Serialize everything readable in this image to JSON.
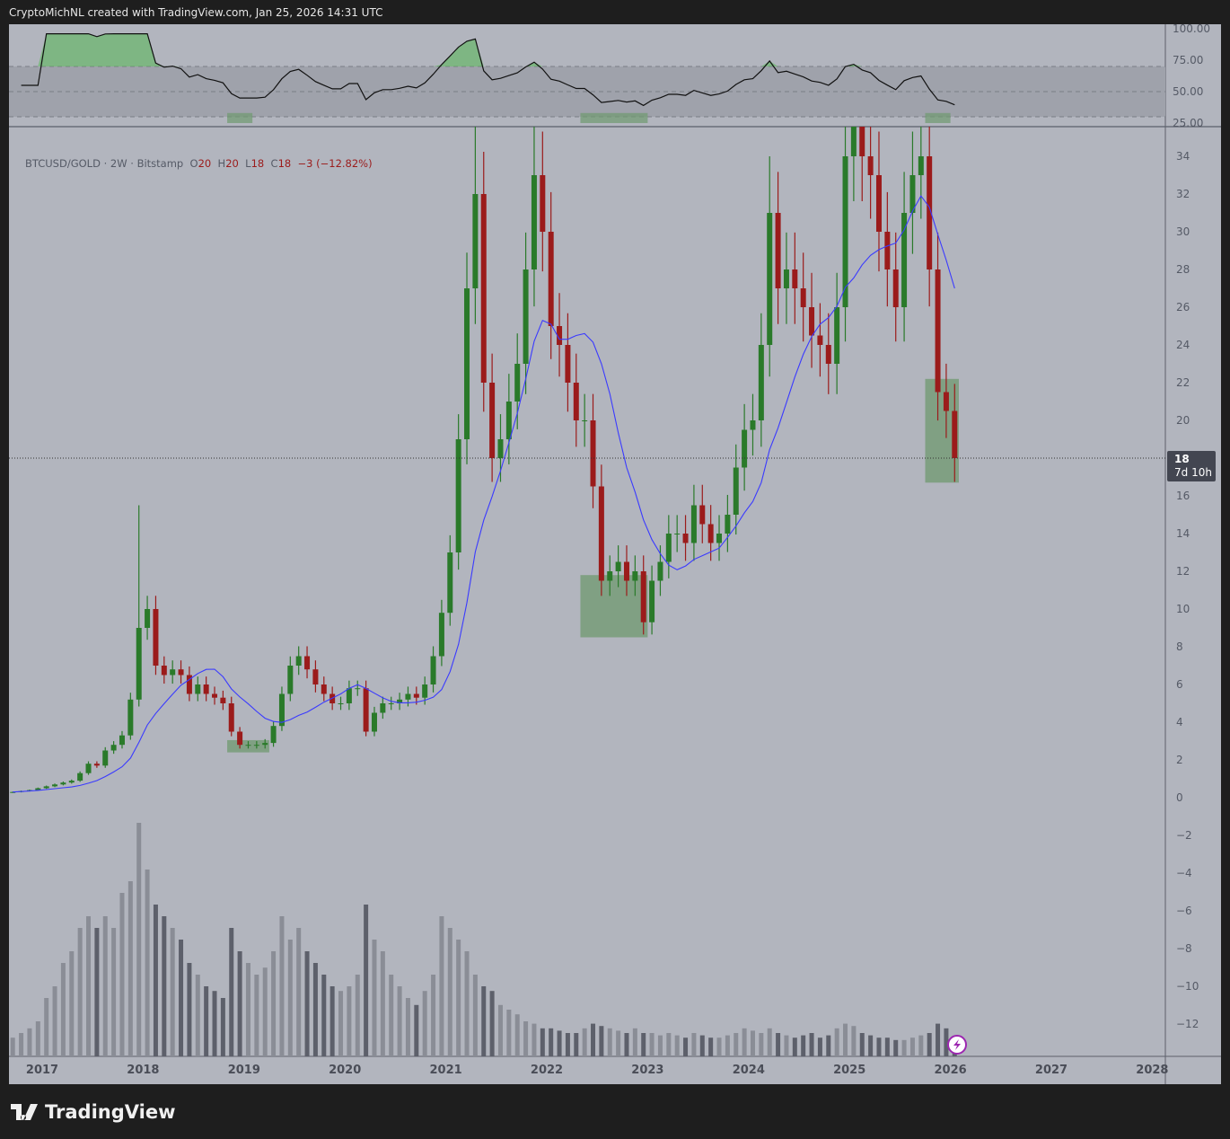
{
  "header": {
    "text": "CryptoMichNL created with TradingView.com, Jan 25, 2026 14:31 UTC"
  },
  "legend": {
    "symbol": "BTCUSD/GOLD · 2W · Bitstamp",
    "o_label": "O",
    "o": "20",
    "h_label": "H",
    "h": "20",
    "l_label": "L",
    "l": "18",
    "c_label": "C",
    "c": "18",
    "change": "−3 (−12.82%)"
  },
  "price_tag": {
    "value": "18",
    "countdown": "7d 10h"
  },
  "branding": {
    "name": "TradingView"
  },
  "colors": {
    "up": "#2a7a2a",
    "down": "#9b1b1b",
    "sma": "#3a3aff",
    "rsi_fill": "#5cb85c",
    "highlight": "#6f9a6f",
    "background": "#b2b5be"
  },
  "chart_data": {
    "type": "candlestick",
    "interval": "2W",
    "start": "2016-09",
    "step": "1 month (approximated)",
    "closes": [
      0.3,
      0.35,
      0.4,
      0.5,
      0.6,
      0.7,
      0.8,
      0.9,
      1.3,
      1.8,
      1.7,
      2.5,
      2.8,
      3.3,
      5.2,
      9,
      10,
      7,
      6.5,
      6.8,
      6.5,
      5.5,
      6,
      5.5,
      5.3,
      5,
      3.5,
      2.8,
      2.8,
      2.8,
      2.9,
      3.8,
      5.5,
      7,
      7.5,
      6.8,
      6,
      5.5,
      5,
      5,
      5.8,
      5.8,
      3.5,
      4.5,
      5,
      5,
      5.2,
      5.5,
      5.3,
      6,
      7.5,
      9.8,
      13,
      19,
      27,
      32,
      22,
      18,
      19,
      21,
      23,
      28,
      33,
      30,
      25,
      24,
      22,
      20,
      20,
      16.5,
      11.5,
      12,
      12.5,
      11.5,
      12,
      9.3,
      11.5,
      12.5,
      14,
      14,
      13.5,
      15.5,
      14.5,
      13.5,
      14,
      15,
      17.5,
      19.5,
      20,
      24,
      31,
      27,
      28,
      27,
      26,
      24.5,
      24,
      23,
      26,
      34,
      36,
      34,
      33,
      30,
      28,
      26,
      31,
      33,
      34,
      28,
      21.5,
      20.5,
      18
    ],
    "peak_highs": [
      {
        "date": "2017-12",
        "high": 15.5
      },
      {
        "date": "2021-04",
        "high": 36
      },
      {
        "date": "2021-11",
        "high": 36
      },
      {
        "date": "2024-03",
        "high": 34
      },
      {
        "date": "2025-01",
        "high": 36
      },
      {
        "date": "2025-09",
        "high": 36
      }
    ],
    "volume": [
      8,
      10,
      12,
      15,
      25,
      30,
      40,
      45,
      55,
      60,
      55,
      60,
      55,
      70,
      75,
      100,
      80,
      65,
      60,
      55,
      50,
      40,
      35,
      30,
      28,
      25,
      55,
      45,
      40,
      35,
      38,
      45,
      60,
      50,
      55,
      45,
      40,
      35,
      30,
      28,
      30,
      35,
      65,
      50,
      45,
      35,
      30,
      25,
      22,
      28,
      35,
      60,
      55,
      50,
      45,
      35,
      30,
      28,
      22,
      20,
      18,
      15,
      14,
      12,
      12,
      11,
      10,
      10,
      12,
      14,
      13,
      12,
      11,
      10,
      12,
      10,
      10,
      9,
      10,
      9,
      8,
      10,
      9,
      8,
      8,
      9,
      10,
      12,
      11,
      10,
      12,
      10,
      9,
      8,
      9,
      10,
      8,
      9,
      12,
      14,
      13,
      10,
      9,
      8,
      8,
      7,
      7,
      8,
      9,
      10,
      14,
      12,
      6
    ],
    "sma_period": 10,
    "rsi": {
      "period": 14,
      "bands": [
        30,
        50,
        70
      ],
      "ticks": [
        "100.00",
        "75.00",
        "50.00",
        "25.00"
      ]
    },
    "y_ticks": [
      "34",
      "32",
      "30",
      "28",
      "26",
      "24",
      "22",
      "20",
      "16",
      "14",
      "12",
      "10",
      "8",
      "6",
      "4",
      "2",
      "0",
      "-2",
      "-4",
      "-6",
      "-8",
      "-10",
      "-12"
    ],
    "x_ticks": [
      "2017",
      "2018",
      "2019",
      "2020",
      "2021",
      "2022",
      "2023",
      "2024",
      "2025",
      "2026",
      "2027",
      "2028"
    ],
    "current_price": 18,
    "highlight_boxes": [
      {
        "from": "2018-11",
        "to": "2019-04",
        "low": 2.4,
        "high": 3.05
      },
      {
        "from": "2022-05",
        "to": "2023-01",
        "low": 8.5,
        "high": 11.8
      },
      {
        "from": "2025-10",
        "to": "2026-02",
        "low": 16.7,
        "high": 22.2
      }
    ],
    "rsi_boxes": [
      {
        "from": "2018-11",
        "to": "2019-02"
      },
      {
        "from": "2022-05",
        "to": "2023-01"
      },
      {
        "from": "2025-10",
        "to": "2026-01"
      }
    ]
  }
}
